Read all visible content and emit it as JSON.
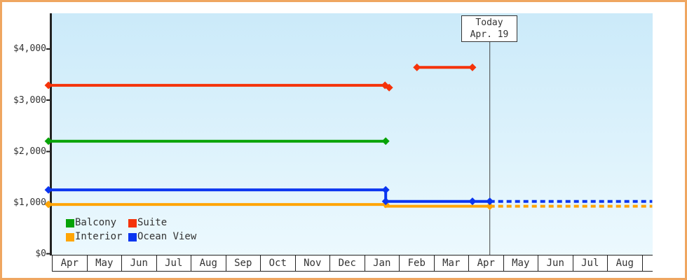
{
  "colors": {
    "frame_border": "#efa660",
    "plot_bg_top": "#cbeaf9",
    "plot_bg_bottom": "#ecf9fe",
    "axis": "#222222",
    "today_line": "#444444",
    "text": "#333333"
  },
  "chart_data": {
    "type": "line",
    "currency": "$",
    "x_axis": {
      "tick_labels": [
        "Apr",
        "May",
        "Jun",
        "Jul",
        "Aug",
        "Sep",
        "Oct",
        "Nov",
        "Dec",
        "Jan",
        "Feb",
        "Mar",
        "Apr",
        "May",
        "Jun",
        "Jul",
        "Aug"
      ]
    },
    "y_axis": {
      "tick_labels": [
        "$0",
        "$1,000",
        "$2,000",
        "$3,000",
        "$4,000"
      ],
      "tick_values": [
        0,
        1000,
        2000,
        3000,
        4000
      ],
      "ylim": [
        0,
        4700
      ]
    },
    "today": {
      "label_line1": "Today",
      "label_line2": "Apr. 19",
      "x_month_index": 12.6
    },
    "series": [
      {
        "name": "Interior",
        "color": "#ffa505",
        "segments": [
          {
            "style": "solid",
            "points": [
              {
                "x": -0.12,
                "y": 965,
                "marker": true
              },
              {
                "x": 9.6,
                "y": 965,
                "marker": true
              },
              {
                "x": 9.6,
                "y": 930
              },
              {
                "x": 12.6,
                "y": 930,
                "marker": true
              }
            ]
          },
          {
            "style": "dashed",
            "points": [
              {
                "x": 12.6,
                "y": 930
              },
              {
                "x": 17.28,
                "y": 930
              }
            ]
          }
        ]
      },
      {
        "name": "Ocean View",
        "color": "#0a35f0",
        "segments": [
          {
            "style": "solid",
            "points": [
              {
                "x": -0.12,
                "y": 1250,
                "marker": true
              },
              {
                "x": 9.6,
                "y": 1250,
                "marker": true
              },
              {
                "x": 9.6,
                "y": 1025,
                "marker": true
              },
              {
                "x": 12.1,
                "y": 1025,
                "marker": true
              },
              {
                "x": 12.6,
                "y": 1025,
                "marker": true
              }
            ]
          },
          {
            "style": "dashed",
            "points": [
              {
                "x": 12.6,
                "y": 1025
              },
              {
                "x": 17.28,
                "y": 1025
              }
            ]
          }
        ]
      },
      {
        "name": "Balcony",
        "color": "#07a307",
        "segments": [
          {
            "style": "solid",
            "points": [
              {
                "x": -0.12,
                "y": 2200,
                "marker": true
              },
              {
                "x": 9.6,
                "y": 2200,
                "marker": true
              }
            ]
          }
        ]
      },
      {
        "name": "Suite",
        "color": "#f5330a",
        "segments": [
          {
            "style": "solid",
            "points": [
              {
                "x": -0.12,
                "y": 3290,
                "marker": true
              },
              {
                "x": 9.58,
                "y": 3290,
                "marker": true
              },
              {
                "x": 9.7,
                "y": 3245,
                "marker": true
              }
            ]
          },
          {
            "style": "solid",
            "points": [
              {
                "x": 10.5,
                "y": 3640,
                "marker": true
              },
              {
                "x": 12.1,
                "y": 3640,
                "marker": true
              }
            ]
          }
        ]
      }
    ],
    "legend": {
      "position": "bottom-left",
      "rows": [
        [
          "Balcony",
          "Suite"
        ],
        [
          "Interior",
          "Ocean View"
        ]
      ]
    }
  }
}
